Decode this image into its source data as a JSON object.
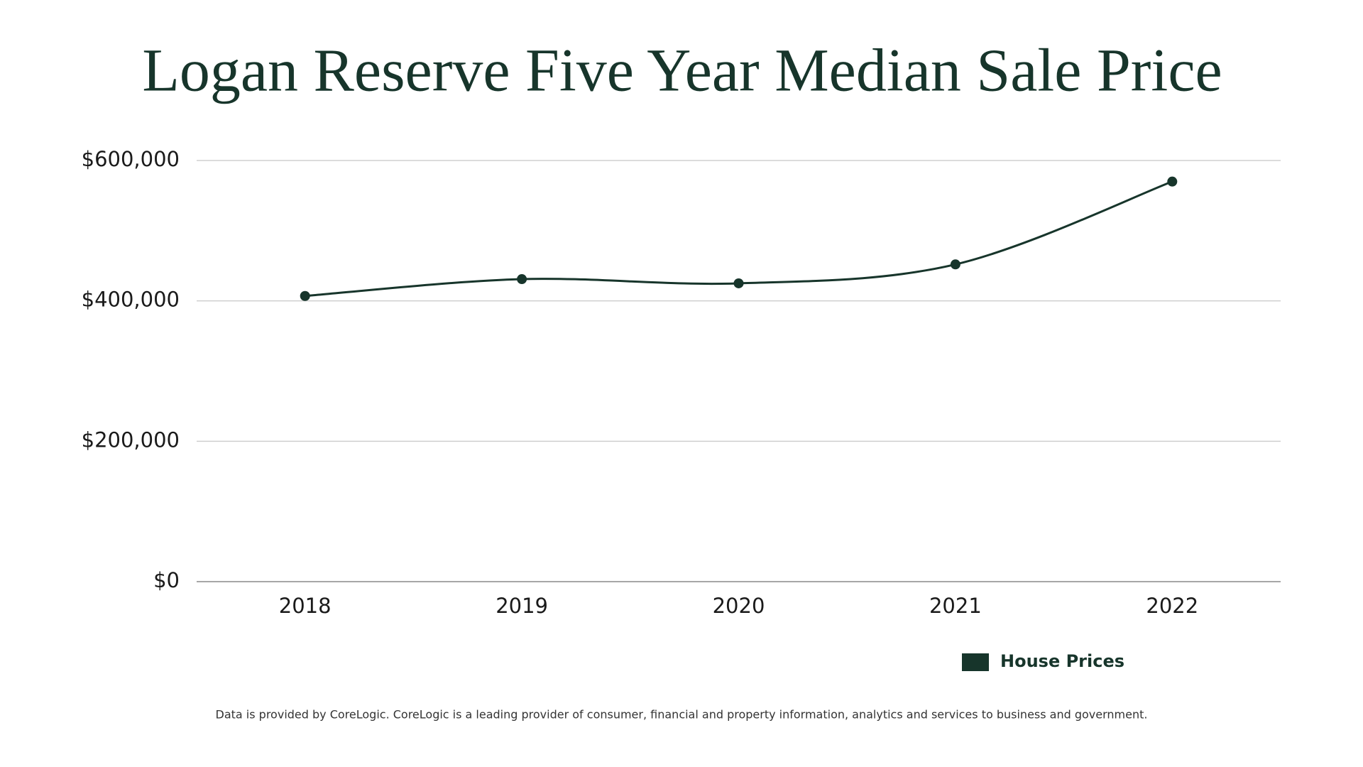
{
  "chart_data": {
    "type": "line",
    "title": "Logan Reserve Five Year Median Sale Price",
    "categories": [
      "2018",
      "2019",
      "2020",
      "2021",
      "2022"
    ],
    "series": [
      {
        "name": "House Prices",
        "color": "#17352b",
        "values": [
          407000,
          431000,
          425000,
          452000,
          570000
        ]
      }
    ],
    "ylim": [
      0,
      600000
    ],
    "yticks": [
      {
        "value": 0,
        "label": "$0"
      },
      {
        "value": 200000,
        "label": "$200,000"
      },
      {
        "value": 400000,
        "label": "$400,000"
      },
      {
        "value": 600000,
        "label": "$600,000"
      }
    ],
    "grid": true,
    "legend": "bottom-right",
    "footnote": "Data is provided by CoreLogic. CoreLogic is a leading provider of consumer, financial and property information, analytics and services to business and government."
  }
}
